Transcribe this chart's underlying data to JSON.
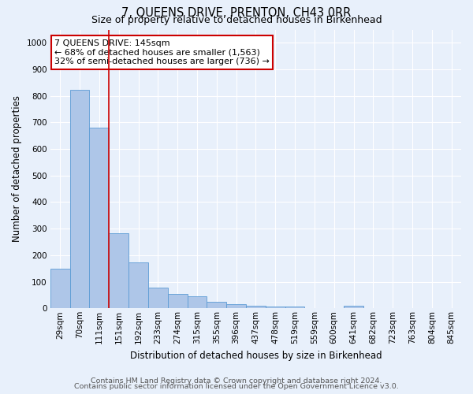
{
  "title": "7, QUEENS DRIVE, PRENTON, CH43 0RR",
  "subtitle": "Size of property relative to detached houses in Birkenhead",
  "xlabel": "Distribution of detached houses by size in Birkenhead",
  "ylabel": "Number of detached properties",
  "footnote1": "Contains HM Land Registry data © Crown copyright and database right 2024.",
  "footnote2": "Contains public sector information licensed under the Open Government Licence v3.0.",
  "annotation_line1": "7 QUEENS DRIVE: 145sqm",
  "annotation_line2": "← 68% of detached houses are smaller (1,563)",
  "annotation_line3": "32% of semi-detached houses are larger (736) →",
  "bar_labels": [
    "29sqm",
    "70sqm",
    "111sqm",
    "151sqm",
    "192sqm",
    "233sqm",
    "274sqm",
    "315sqm",
    "355sqm",
    "396sqm",
    "437sqm",
    "478sqm",
    "519sqm",
    "559sqm",
    "600sqm",
    "641sqm",
    "682sqm",
    "723sqm",
    "763sqm",
    "804sqm",
    "845sqm"
  ],
  "bar_values": [
    148,
    822,
    681,
    284,
    172,
    77,
    55,
    44,
    24,
    15,
    10,
    8,
    6,
    0,
    0,
    10,
    0,
    0,
    0,
    0,
    0
  ],
  "bar_color": "#aec6e8",
  "bar_edge_color": "#5b9bd5",
  "vline_color": "#cc0000",
  "annotation_box_color": "#cc0000",
  "ylim": [
    0,
    1050
  ],
  "yticks": [
    0,
    100,
    200,
    300,
    400,
    500,
    600,
    700,
    800,
    900,
    1000
  ],
  "background_color": "#e8f0fb",
  "plot_background": "#e8f0fb",
  "grid_color": "#ffffff",
  "title_fontsize": 10.5,
  "subtitle_fontsize": 9,
  "axis_label_fontsize": 8.5,
  "tick_fontsize": 7.5,
  "annotation_fontsize": 8,
  "footnote_fontsize": 6.8
}
